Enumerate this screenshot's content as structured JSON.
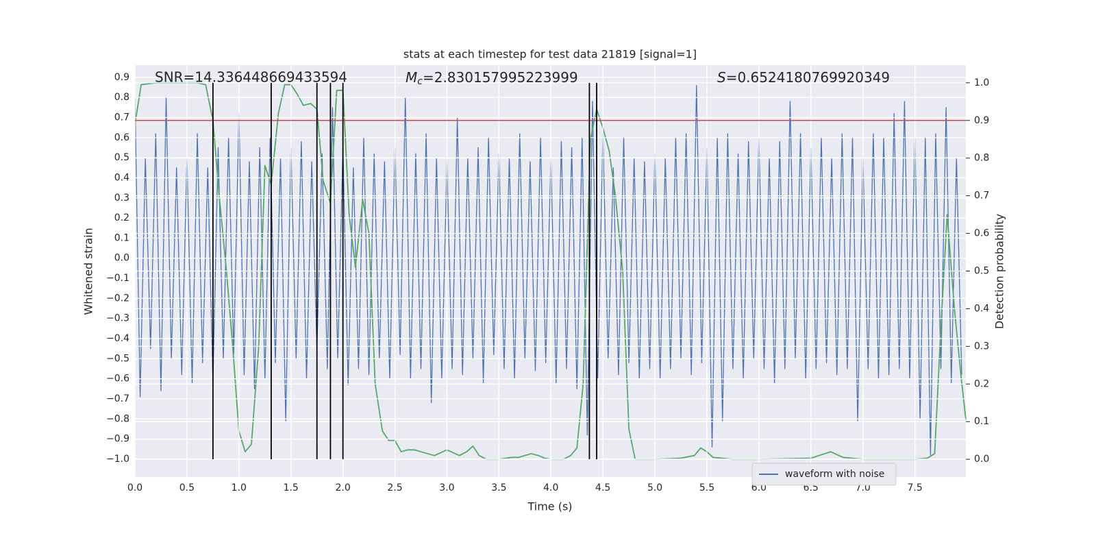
{
  "chart_data": {
    "type": "line",
    "title": "stats at each timestep for test data 21819 [signal=1]",
    "xlabel": "Time (s)",
    "ylabel": "Whitened strain",
    "y2label": "Detection probability",
    "annotations": [
      {
        "text": "SNR=14.336448669433594"
      },
      {
        "symbol": "M",
        "subscript": "c",
        "text": "=2.830157995223999"
      },
      {
        "symbol": "S",
        "text": "=0.6524180769920349"
      }
    ],
    "xlim": [
      0,
      7.99
    ],
    "ylim": [
      -1.089,
      0.961
    ],
    "y2lim": [
      -0.047,
      1.047
    ],
    "xticks": [
      {
        "value": 0,
        "label": "0.0"
      },
      0.5,
      {
        "value": 1,
        "label": "1.0"
      },
      1.5,
      {
        "value": 2,
        "label": "2.0"
      },
      2.5,
      {
        "value": 3,
        "label": "3.0"
      },
      3.5,
      {
        "value": 4,
        "label": "4.0"
      },
      4.5,
      {
        "value": 5,
        "label": "5.0"
      },
      5.5,
      {
        "value": 6,
        "label": "6.0"
      },
      6.5,
      {
        "value": 7,
        "label": "7.0"
      },
      7.5
    ],
    "yticks": [
      {
        "value": -1,
        "label": "−1.0"
      },
      {
        "value": -0.9,
        "label": "−0.9"
      },
      {
        "value": -0.8,
        "label": "−0.8"
      },
      {
        "value": -0.7,
        "label": "−0.7"
      },
      {
        "value": -0.6,
        "label": "−0.6"
      },
      {
        "value": -0.5,
        "label": "−0.5"
      },
      {
        "value": -0.4,
        "label": "−0.4"
      },
      {
        "value": -0.3,
        "label": "−0.3"
      },
      {
        "value": -0.2,
        "label": "−0.2"
      },
      {
        "value": -0.1,
        "label": "−0.1"
      },
      {
        "value": 0,
        "label": "0.0"
      },
      0.1,
      0.2,
      0.3,
      0.4,
      0.5,
      0.6,
      0.7,
      0.8,
      0.9
    ],
    "y2ticks": [
      {
        "value": 0,
        "label": "0.0"
      },
      0.1,
      0.2,
      0.3,
      0.4,
      0.5,
      0.6,
      0.7,
      0.8,
      0.9,
      {
        "value": 1,
        "label": "1.0"
      }
    ],
    "grid": true,
    "legend": "lower right",
    "series": [
      {
        "name": "waveform with noise",
        "color": "#4c72b0",
        "x": [
          0,
          0.05,
          0.1,
          0.15,
          0.2,
          0.25,
          0.3,
          0.35,
          0.4,
          0.45,
          0.5,
          0.55,
          0.6,
          0.65,
          0.7,
          0.75,
          0.8,
          0.85,
          0.9,
          0.95,
          1,
          1.05,
          1.1,
          1.15,
          1.2,
          1.25,
          1.3,
          1.35,
          1.4,
          1.45,
          1.5,
          1.55,
          1.6,
          1.65,
          1.7,
          1.75,
          1.8,
          1.85,
          1.9,
          1.95,
          2,
          2.05,
          2.1,
          2.15,
          2.2,
          2.25,
          2.3,
          2.35,
          2.4,
          2.45,
          2.5,
          2.55,
          2.6,
          2.65,
          2.7,
          2.75,
          2.8,
          2.85,
          2.9,
          2.95,
          3,
          3.05,
          3.1,
          3.15,
          3.2,
          3.25,
          3.3,
          3.35,
          3.4,
          3.45,
          3.5,
          3.55,
          3.6,
          3.65,
          3.7,
          3.75,
          3.8,
          3.85,
          3.9,
          3.95,
          4,
          4.05,
          4.1,
          4.15,
          4.2,
          4.25,
          4.3,
          4.35,
          4.4,
          4.45,
          4.5,
          4.55,
          4.6,
          4.65,
          4.7,
          4.75,
          4.8,
          4.85,
          4.9,
          4.95,
          5,
          5.05,
          5.1,
          5.15,
          5.2,
          5.25,
          5.3,
          5.35,
          5.4,
          5.45,
          5.5,
          5.55,
          5.6,
          5.65,
          5.7,
          5.75,
          5.8,
          5.85,
          5.9,
          5.95,
          6,
          6.05,
          6.1,
          6.15,
          6.2,
          6.25,
          6.3,
          6.35,
          6.4,
          6.45,
          6.5,
          6.55,
          6.6,
          6.65,
          6.7,
          6.75,
          6.8,
          6.85,
          6.9,
          6.95,
          7,
          7.05,
          7.1,
          7.15,
          7.2,
          7.25,
          7.3,
          7.35,
          7.4,
          7.45,
          7.5,
          7.55,
          7.6,
          7.65,
          7.7,
          7.75,
          7.8,
          7.85,
          7.9,
          7.95
        ],
        "values": [
          0.8,
          -0.69,
          0.5,
          -0.45,
          0.62,
          -0.66,
          0.8,
          -0.5,
          0.45,
          -0.58,
          0.5,
          -0.62,
          0.62,
          -0.52,
          0.45,
          -0.62,
          0.55,
          -0.5,
          0.6,
          -0.48,
          0.72,
          -0.58,
          0.48,
          -0.65,
          0.55,
          -0.6,
          0.6,
          -0.52,
          0.5,
          -0.81,
          0.55,
          -0.5,
          0.58,
          -0.6,
          0.48,
          -0.45,
          0.52,
          -0.55,
          0.75,
          -0.5,
          0.55,
          -0.63,
          0.45,
          -0.55,
          0.6,
          -0.58,
          0.52,
          -0.5,
          0.48,
          -0.6,
          0.55,
          -0.48,
          0.8,
          -0.6,
          0.52,
          -0.55,
          0.62,
          -0.72,
          0.5,
          -0.6,
          0.48,
          -0.55,
          0.7,
          -0.58,
          0.5,
          -0.5,
          0.55,
          -0.62,
          0.6,
          -0.48,
          0.52,
          -0.55,
          0.5,
          -0.6,
          0.62,
          -0.5,
          0.48,
          -0.56,
          0.6,
          -0.52,
          0.5,
          -0.62,
          0.58,
          -0.55,
          0.55,
          -0.65,
          0.6,
          -0.88,
          0.78,
          -0.6,
          0.62,
          -0.5,
          0.45,
          -0.58,
          0.6,
          -0.52,
          0.5,
          -0.6,
          0.48,
          -0.55,
          0.52,
          -0.6,
          0.5,
          -0.55,
          0.6,
          -0.5,
          0.62,
          -0.58,
          0.86,
          -0.52,
          0.55,
          -0.94,
          0.6,
          -0.81,
          0.62,
          -0.55,
          0.52,
          -0.6,
          0.58,
          -0.5,
          0.6,
          -0.55,
          0.5,
          -0.62,
          0.58,
          -0.55,
          0.78,
          -0.5,
          0.62,
          -0.6,
          0.55,
          -0.55,
          0.6,
          -0.52,
          0.5,
          -0.58,
          0.62,
          -0.55,
          0.6,
          -0.81,
          0.5,
          -0.55,
          0.62,
          -0.6,
          0.6,
          -0.58,
          0.72,
          -0.55,
          0.78,
          -0.6,
          0.6,
          -0.8,
          0.6,
          -0.98,
          0.62,
          -0.55,
          0.75,
          -0.62,
          0.5,
          -0.58
        ]
      },
      {
        "color": "#55a868",
        "axis": "y2",
        "x": [
          0,
          0.06,
          0.2,
          0.4,
          0.6,
          0.68,
          0.75,
          0.81,
          0.88,
          0.94,
          1,
          1.06,
          1.12,
          1.19,
          1.25,
          1.31,
          1.38,
          1.44,
          1.5,
          1.56,
          1.62,
          1.69,
          1.75,
          1.81,
          1.88,
          1.94,
          2,
          2.06,
          2.12,
          2.19,
          2.25,
          2.31,
          2.38,
          2.44,
          2.5,
          2.56,
          2.62,
          2.69,
          2.75,
          2.88,
          3,
          3.12,
          3.19,
          3.25,
          3.31,
          3.38,
          3.5,
          3.62,
          3.69,
          3.81,
          3.88,
          3.94,
          4,
          4.12,
          4.19,
          4.25,
          4.31,
          4.38,
          4.44,
          4.5,
          4.56,
          4.62,
          4.69,
          4.75,
          4.81,
          5,
          5.25,
          5.38,
          5.44,
          5.5,
          5.56,
          5.75,
          6,
          6.5,
          6.69,
          6.81,
          7,
          7.5,
          7.62,
          7.69,
          7.75,
          7.81,
          7.88,
          7.94,
          7.99
        ],
        "values": [
          0.89,
          0.995,
          1,
          1,
          1,
          0.995,
          0.9,
          0.7,
          0.5,
          0.3,
          0.075,
          0.02,
          0.04,
          0.3,
          0.78,
          0.73,
          0.92,
          0.995,
          0.995,
          0.97,
          0.94,
          0.945,
          0.93,
          0.74,
          0.68,
          0.98,
          0.98,
          0.65,
          0.51,
          0.69,
          0.6,
          0.2,
          0.075,
          0.05,
          0.05,
          0.02,
          0.025,
          0.025,
          0.02,
          0.01,
          0.025,
          0.01,
          0.02,
          0.035,
          0.01,
          0,
          0,
          0.005,
          0.005,
          0.015,
          0.01,
          0.003,
          0,
          0,
          0.01,
          0.03,
          0.2,
          0.85,
          0.93,
          0.88,
          0.82,
          0.7,
          0.5,
          0.08,
          0,
          0,
          0.003,
          0.01,
          0.03,
          0.02,
          0.005,
          0,
          0,
          0.003,
          0.02,
          0.005,
          0,
          0,
          0.003,
          0.015,
          0.35,
          0.65,
          0.4,
          0.23,
          0.105
        ]
      }
    ],
    "hlines": [
      {
        "value": 0.9,
        "axis": "y2",
        "color": "#c44e52"
      }
    ],
    "vlines": {
      "values": [
        0.75,
        1.31,
        1.75,
        1.88,
        2.0,
        4.37,
        4.44
      ],
      "axis": "y2",
      "color": "#000000"
    }
  }
}
